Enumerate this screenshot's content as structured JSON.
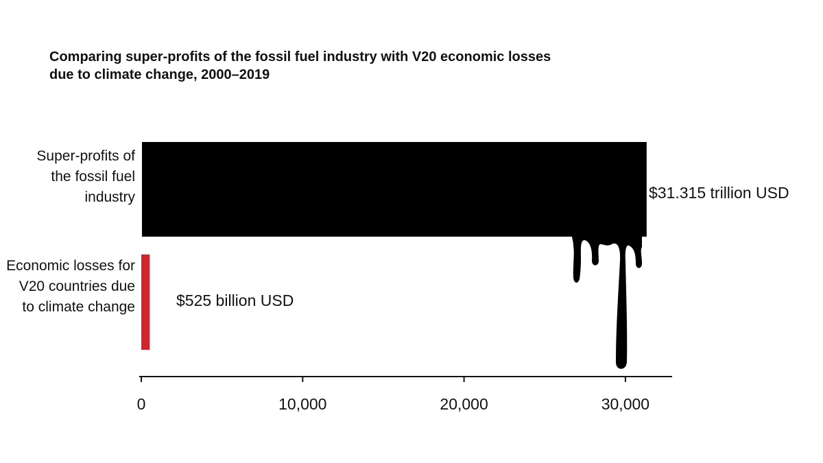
{
  "title": "Comparing super-profits of the fossil fuel industry with V20 economic losses due to climate change, 2000–2019",
  "chart_data": {
    "type": "bar",
    "orientation": "horizontal",
    "title": "Comparing super-profits of the fossil fuel industry with V20 economic losses due to climate change, 2000–2019",
    "xlabel": "",
    "ylabel": "",
    "xlim": [
      0,
      33000
    ],
    "xticks": [
      0,
      10000,
      20000,
      30000
    ],
    "xtick_labels": [
      "0",
      "10,000",
      "20,000",
      "30,000"
    ],
    "grid": false,
    "legend": "none",
    "categories": [
      "Super-profits of the fossil fuel industry",
      "Economic losses for V20 countries due to climate change"
    ],
    "values": [
      31315,
      525
    ],
    "value_labels": [
      "$31.315 trillion USD",
      "$525 billion USD"
    ],
    "colors": [
      "#000000",
      "#d0252c"
    ]
  }
}
